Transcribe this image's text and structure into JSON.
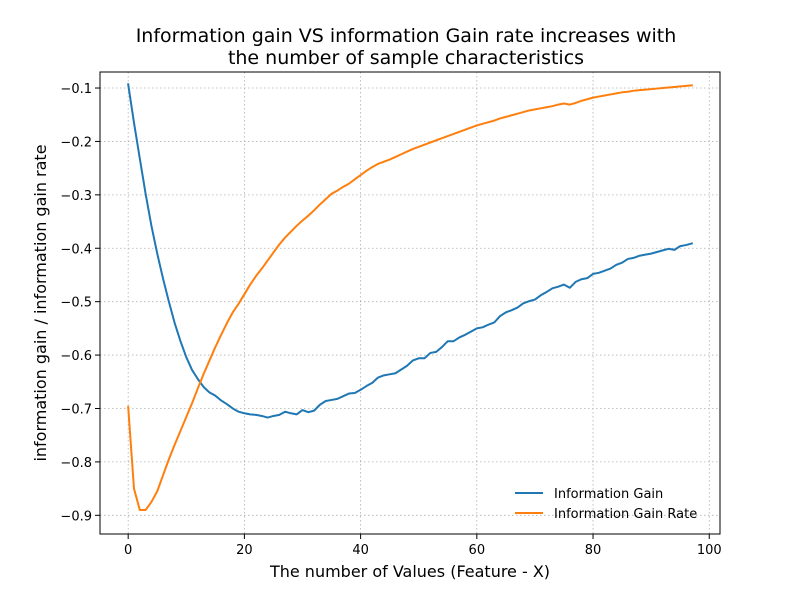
{
  "chart_data": {
    "type": "line",
    "title_line1": "Information gain VS information Gain rate increases with",
    "title_line2": "the number of sample characteristics",
    "xlabel": "The number of Values (Feature - X)",
    "ylabel": "information gain / information gain rate",
    "xlim": [
      -4.85,
      101.85
    ],
    "ylim": [
      -0.935,
      -0.07
    ],
    "x_ticks": [
      0,
      20,
      40,
      60,
      80,
      100
    ],
    "y_ticks": [
      -0.9,
      -0.8,
      -0.7,
      -0.6,
      -0.5,
      -0.4,
      -0.3,
      -0.2,
      -0.1
    ],
    "x_tick_labels": [
      "0",
      "20",
      "40",
      "60",
      "80",
      "100"
    ],
    "y_tick_labels": [
      "−0.9",
      "−0.8",
      "−0.7",
      "−0.6",
      "−0.5",
      "−0.4",
      "−0.3",
      "−0.2",
      "−0.1"
    ],
    "grid": true,
    "legend_position": "lower-right",
    "series": [
      {
        "name": "Information Gain",
        "color": "#1f77b4",
        "points": [
          [
            0,
            -0.093
          ],
          [
            1,
            -0.165
          ],
          [
            2,
            -0.232
          ],
          [
            3,
            -0.298
          ],
          [
            4,
            -0.358
          ],
          [
            5,
            -0.41
          ],
          [
            6,
            -0.457
          ],
          [
            7,
            -0.5
          ],
          [
            8,
            -0.54
          ],
          [
            9,
            -0.574
          ],
          [
            10,
            -0.604
          ],
          [
            11,
            -0.628
          ],
          [
            12,
            -0.645
          ],
          [
            13,
            -0.66
          ],
          [
            14,
            -0.67
          ],
          [
            15,
            -0.676
          ],
          [
            16,
            -0.685
          ],
          [
            17,
            -0.692
          ],
          [
            18,
            -0.7
          ],
          [
            19,
            -0.706
          ],
          [
            20,
            -0.709
          ],
          [
            21,
            -0.711
          ],
          [
            22,
            -0.712
          ],
          [
            23,
            -0.714
          ],
          [
            24,
            -0.717
          ],
          [
            25,
            -0.714
          ],
          [
            26,
            -0.712
          ],
          [
            27,
            -0.706
          ],
          [
            28,
            -0.709
          ],
          [
            29,
            -0.711
          ],
          [
            30,
            -0.703
          ],
          [
            31,
            -0.707
          ],
          [
            32,
            -0.704
          ],
          [
            33,
            -0.693
          ],
          [
            34,
            -0.686
          ],
          [
            35,
            -0.684
          ],
          [
            36,
            -0.682
          ],
          [
            37,
            -0.677
          ],
          [
            38,
            -0.672
          ],
          [
            39,
            -0.671
          ],
          [
            40,
            -0.665
          ],
          [
            41,
            -0.658
          ],
          [
            42,
            -0.652
          ],
          [
            43,
            -0.642
          ],
          [
            44,
            -0.638
          ],
          [
            45,
            -0.636
          ],
          [
            46,
            -0.634
          ],
          [
            47,
            -0.627
          ],
          [
            48,
            -0.62
          ],
          [
            49,
            -0.61
          ],
          [
            50,
            -0.606
          ],
          [
            51,
            -0.606
          ],
          [
            52,
            -0.596
          ],
          [
            53,
            -0.594
          ],
          [
            54,
            -0.585
          ],
          [
            55,
            -0.574
          ],
          [
            56,
            -0.574
          ],
          [
            57,
            -0.567
          ],
          [
            58,
            -0.562
          ],
          [
            59,
            -0.556
          ],
          [
            60,
            -0.55
          ],
          [
            61,
            -0.548
          ],
          [
            62,
            -0.543
          ],
          [
            63,
            -0.539
          ],
          [
            64,
            -0.527
          ],
          [
            65,
            -0.52
          ],
          [
            66,
            -0.516
          ],
          [
            67,
            -0.511
          ],
          [
            68,
            -0.503
          ],
          [
            69,
            -0.499
          ],
          [
            70,
            -0.496
          ],
          [
            71,
            -0.488
          ],
          [
            72,
            -0.482
          ],
          [
            73,
            -0.475
          ],
          [
            74,
            -0.472
          ],
          [
            75,
            -0.468
          ],
          [
            76,
            -0.474
          ],
          [
            77,
            -0.463
          ],
          [
            78,
            -0.458
          ],
          [
            79,
            -0.456
          ],
          [
            80,
            -0.448
          ],
          [
            81,
            -0.446
          ],
          [
            82,
            -0.442
          ],
          [
            83,
            -0.438
          ],
          [
            84,
            -0.431
          ],
          [
            85,
            -0.427
          ],
          [
            86,
            -0.42
          ],
          [
            87,
            -0.418
          ],
          [
            88,
            -0.414
          ],
          [
            89,
            -0.412
          ],
          [
            90,
            -0.41
          ],
          [
            91,
            -0.407
          ],
          [
            92,
            -0.404
          ],
          [
            93,
            -0.401
          ],
          [
            94,
            -0.403
          ],
          [
            95,
            -0.396
          ],
          [
            96,
            -0.394
          ],
          [
            97,
            -0.391
          ]
        ]
      },
      {
        "name": "Information Gain Rate",
        "color": "#ff7f0e",
        "points": [
          [
            0,
            -0.697
          ],
          [
            1,
            -0.85
          ],
          [
            2,
            -0.89
          ],
          [
            3,
            -0.89
          ],
          [
            4,
            -0.875
          ],
          [
            5,
            -0.855
          ],
          [
            6,
            -0.825
          ],
          [
            7,
            -0.795
          ],
          [
            8,
            -0.768
          ],
          [
            9,
            -0.742
          ],
          [
            10,
            -0.716
          ],
          [
            11,
            -0.69
          ],
          [
            12,
            -0.662
          ],
          [
            13,
            -0.635
          ],
          [
            14,
            -0.61
          ],
          [
            15,
            -0.585
          ],
          [
            16,
            -0.562
          ],
          [
            17,
            -0.54
          ],
          [
            18,
            -0.52
          ],
          [
            19,
            -0.504
          ],
          [
            20,
            -0.486
          ],
          [
            21,
            -0.468
          ],
          [
            22,
            -0.452
          ],
          [
            23,
            -0.438
          ],
          [
            24,
            -0.423
          ],
          [
            25,
            -0.408
          ],
          [
            26,
            -0.393
          ],
          [
            27,
            -0.38
          ],
          [
            28,
            -0.369
          ],
          [
            29,
            -0.358
          ],
          [
            30,
            -0.348
          ],
          [
            31,
            -0.339
          ],
          [
            32,
            -0.329
          ],
          [
            33,
            -0.318
          ],
          [
            34,
            -0.308
          ],
          [
            35,
            -0.298
          ],
          [
            36,
            -0.292
          ],
          [
            37,
            -0.285
          ],
          [
            38,
            -0.279
          ],
          [
            39,
            -0.271
          ],
          [
            40,
            -0.263
          ],
          [
            41,
            -0.255
          ],
          [
            42,
            -0.248
          ],
          [
            43,
            -0.242
          ],
          [
            44,
            -0.238
          ],
          [
            45,
            -0.234
          ],
          [
            46,
            -0.229
          ],
          [
            47,
            -0.224
          ],
          [
            48,
            -0.219
          ],
          [
            49,
            -0.214
          ],
          [
            50,
            -0.21
          ],
          [
            51,
            -0.206
          ],
          [
            52,
            -0.202
          ],
          [
            53,
            -0.198
          ],
          [
            54,
            -0.194
          ],
          [
            55,
            -0.19
          ],
          [
            56,
            -0.186
          ],
          [
            57,
            -0.182
          ],
          [
            58,
            -0.178
          ],
          [
            59,
            -0.174
          ],
          [
            60,
            -0.17
          ],
          [
            61,
            -0.167
          ],
          [
            62,
            -0.164
          ],
          [
            63,
            -0.161
          ],
          [
            64,
            -0.157
          ],
          [
            65,
            -0.154
          ],
          [
            66,
            -0.151
          ],
          [
            67,
            -0.148
          ],
          [
            68,
            -0.145
          ],
          [
            69,
            -0.142
          ],
          [
            70,
            -0.14
          ],
          [
            71,
            -0.138
          ],
          [
            72,
            -0.136
          ],
          [
            73,
            -0.134
          ],
          [
            74,
            -0.131
          ],
          [
            75,
            -0.129
          ],
          [
            76,
            -0.131
          ],
          [
            77,
            -0.128
          ],
          [
            78,
            -0.124
          ],
          [
            79,
            -0.121
          ],
          [
            80,
            -0.118
          ],
          [
            81,
            -0.116
          ],
          [
            82,
            -0.114
          ],
          [
            83,
            -0.112
          ],
          [
            84,
            -0.11
          ],
          [
            85,
            -0.108
          ],
          [
            86,
            -0.107
          ],
          [
            87,
            -0.105
          ],
          [
            88,
            -0.104
          ],
          [
            89,
            -0.103
          ],
          [
            90,
            -0.102
          ],
          [
            91,
            -0.101
          ],
          [
            92,
            -0.1
          ],
          [
            93,
            -0.099
          ],
          [
            94,
            -0.098
          ],
          [
            95,
            -0.097
          ],
          [
            96,
            -0.096
          ],
          [
            97,
            -0.095
          ]
        ]
      }
    ]
  }
}
